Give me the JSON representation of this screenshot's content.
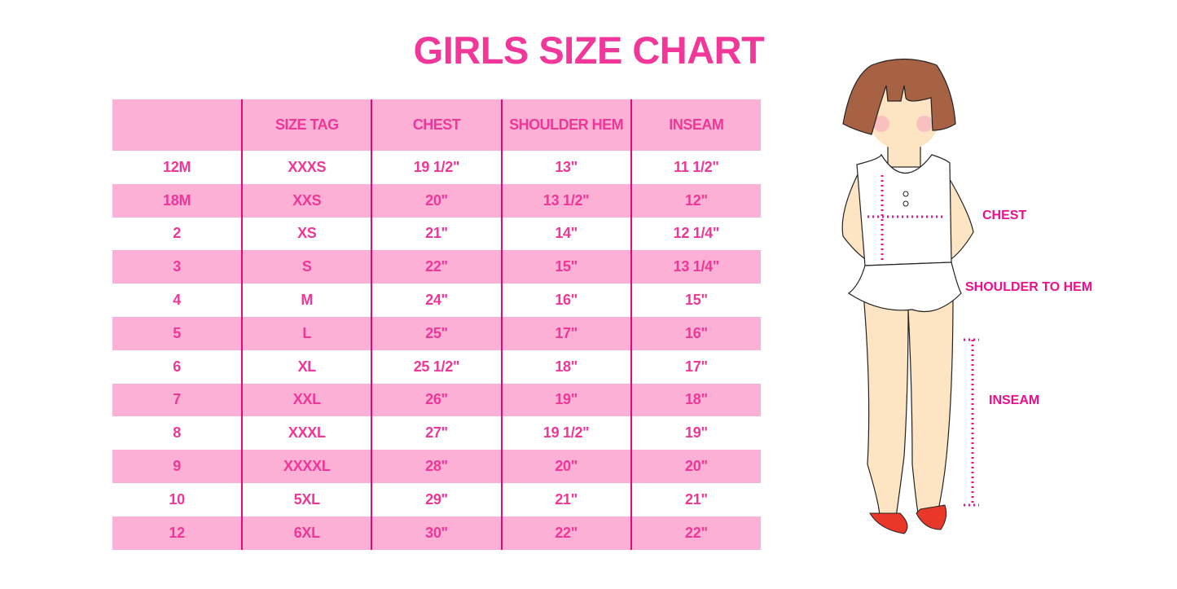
{
  "title": "GIRLS SIZE CHART",
  "table": {
    "headers": [
      "",
      "SIZE TAG",
      "CHEST",
      "SHOULDER HEM",
      "INSEAM"
    ],
    "rows": [
      [
        "12M",
        "XXXS",
        "19 1/2\"",
        "13\"",
        "11 1/2\""
      ],
      [
        "18M",
        "XXS",
        "20\"",
        "13 1/2\"",
        "12\""
      ],
      [
        "2",
        "XS",
        "21\"",
        "14\"",
        "12 1/4\""
      ],
      [
        "3",
        "S",
        "22\"",
        "15\"",
        "13 1/4\""
      ],
      [
        "4",
        "M",
        "24\"",
        "16\"",
        "15\""
      ],
      [
        "5",
        "L",
        "25\"",
        "17\"",
        "16\""
      ],
      [
        "6",
        "XL",
        "25 1/2\"",
        "18\"",
        "17\""
      ],
      [
        "7",
        "XXL",
        "26\"",
        "19\"",
        "18\""
      ],
      [
        "8",
        "XXXL",
        "27\"",
        "19 1/2\"",
        "19\""
      ],
      [
        "9",
        "XXXXL",
        "28\"",
        "20\"",
        "20\""
      ],
      [
        "10",
        "5XL",
        "29\"",
        "21\"",
        "21\""
      ],
      [
        "12",
        "6XL",
        "30\"",
        "22\"",
        "22\""
      ]
    ]
  },
  "illustration": {
    "labels": {
      "chest": "CHEST",
      "shoulder": "SHOULDER TO HEM",
      "inseam": "INSEAM"
    }
  },
  "colors": {
    "accent": "#ef3797",
    "band": "#fdb0d6",
    "divider": "#e2087f"
  }
}
